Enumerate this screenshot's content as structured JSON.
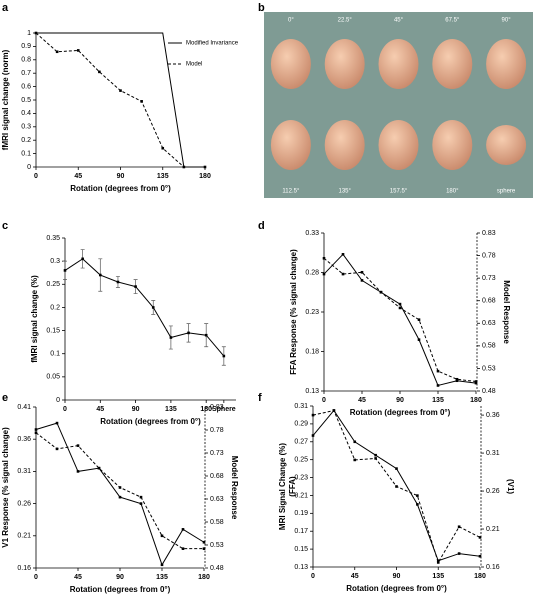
{
  "chart_data": [
    {
      "type": "line",
      "panel": "a",
      "xlabel": "Rotation (degrees  from 0°)",
      "ylabel": "fMRI signal change (norm)",
      "x": [
        0,
        22.5,
        45,
        67.5,
        90,
        112.5,
        135,
        157.5,
        180
      ],
      "xlim": [
        0,
        180
      ],
      "xticks": [
        0,
        45,
        90,
        135,
        180
      ],
      "ylim": [
        0,
        1
      ],
      "yticks": [
        0,
        0.1,
        0.2,
        0.3,
        0.4,
        0.5,
        0.6,
        0.7,
        0.8,
        0.9,
        1
      ],
      "legend": "upper right",
      "series": [
        {
          "name": "Modified Invariance",
          "color": "#000",
          "line_style": "solid",
          "marker": false,
          "values": [
            1,
            1,
            1,
            1,
            1,
            1,
            1,
            0,
            0
          ]
        },
        {
          "name": "Model",
          "color": "#000",
          "line_style": "dashed",
          "marker": true,
          "values": [
            1,
            0.86,
            0.87,
            0.71,
            0.57,
            0.49,
            0.14,
            0,
            0
          ]
        }
      ]
    },
    {
      "type": "image",
      "panel": "b",
      "labels": [
        "0°",
        "22.5°",
        "45°",
        "67.5°",
        "90°",
        "112.5°",
        "135°",
        "157.5°",
        "180°",
        "sphere"
      ]
    },
    {
      "type": "line",
      "panel": "c",
      "xlabel": "Rotation (degrees  from 0°)",
      "ylabel": "fMRI signal change (%)",
      "x": [
        0,
        22.5,
        45,
        67.5,
        90,
        112.5,
        135,
        157.5,
        180,
        202.5
      ],
      "xlim": [
        0,
        218
      ],
      "xticks": [
        0,
        45,
        90,
        135,
        180,
        {
          "value": 202.5,
          "label": "Sphere"
        }
      ],
      "ylim": [
        0,
        0.35
      ],
      "yticks": [
        0,
        0.05,
        0.1,
        0.15,
        0.2,
        0.25,
        0.3,
        0.35
      ],
      "series": [
        {
          "color": "#000",
          "line_style": "solid",
          "marker": true,
          "values": [
            0.28,
            0.305,
            0.27,
            0.255,
            0.245,
            0.2,
            0.135,
            0.145,
            0.14,
            0.095
          ],
          "errors": [
            0.02,
            0.02,
            0.035,
            0.012,
            0.015,
            0.015,
            0.025,
            0.02,
            0.025,
            0.02
          ]
        }
      ]
    },
    {
      "type": "line",
      "panel": "d",
      "xlabel": "Rotation (degrees  from 0°)",
      "ylabel": "FFA Response (% signal change)",
      "y2label": "Model Response",
      "x": [
        0,
        22.5,
        45,
        67.5,
        90,
        112.5,
        135,
        157.5,
        180
      ],
      "xlim": [
        0,
        180
      ],
      "xticks": [
        0,
        45,
        90,
        135,
        180
      ],
      "ylim": [
        0.13,
        0.33
      ],
      "yticks": [
        0.13,
        0.18,
        0.23,
        0.28,
        0.33
      ],
      "y2lim": [
        0.48,
        0.83
      ],
      "y2ticks": [
        0.48,
        0.53,
        0.58,
        0.63,
        0.68,
        0.73,
        0.78,
        0.83
      ],
      "series": [
        {
          "color": "#000",
          "line_style": "solid",
          "marker": true,
          "values": [
            0.278,
            0.303,
            0.27,
            0.255,
            0.24,
            0.195,
            0.137,
            0.143,
            0.14
          ]
        },
        {
          "color": "#000",
          "line_style": "dashed",
          "marker": true,
          "axis": "y2",
          "values": [
            0.774,
            0.739,
            0.743,
            0.699,
            0.664,
            0.638,
            0.524,
            0.506,
            0.501
          ]
        }
      ]
    },
    {
      "type": "line",
      "panel": "e",
      "xlabel": "Rotation (degrees  from 0°)",
      "ylabel": "V1 Response (% signal change)",
      "y2label": "Model Response",
      "x": [
        0,
        22.5,
        45,
        67.5,
        90,
        112.5,
        135,
        157.5,
        180
      ],
      "xlim": [
        0,
        180
      ],
      "xticks": [
        0,
        45,
        90,
        135,
        180
      ],
      "ylim": [
        0.16,
        0.41
      ],
      "yticks": [
        0.16,
        0.21,
        0.26,
        0.31,
        0.36,
        0.41
      ],
      "y2lim": [
        0.48,
        0.83
      ],
      "y2ticks": [
        0.48,
        0.53,
        0.58,
        0.63,
        0.68,
        0.73,
        0.78,
        0.83
      ],
      "series": [
        {
          "color": "#000",
          "line_style": "solid",
          "marker": true,
          "values": [
            0.375,
            0.385,
            0.31,
            0.315,
            0.27,
            0.26,
            0.165,
            0.22,
            0.2
          ]
        },
        {
          "color": "#000",
          "line_style": "dashed",
          "marker": true,
          "axis": "y2",
          "values": [
            0.774,
            0.739,
            0.746,
            0.697,
            0.655,
            0.634,
            0.55,
            0.522,
            0.522
          ]
        }
      ]
    },
    {
      "type": "line",
      "panel": "f",
      "xlabel": "Rotation (degrees  from 0°)",
      "ylabel": "MRI Signal Change (%)",
      "ylabel2": "(FFA)",
      "y2label": "(V1)",
      "x": [
        0,
        22.5,
        45,
        67.5,
        90,
        112.5,
        135,
        157.5,
        180
      ],
      "xlim": [
        0,
        180
      ],
      "xticks": [
        0,
        45,
        90,
        135,
        180
      ],
      "ylim": [
        0.13,
        0.31
      ],
      "yticks": [
        0.13,
        0.15,
        0.17,
        0.19,
        0.21,
        0.23,
        0.25,
        0.27,
        0.29,
        0.31
      ],
      "y2lim": [
        0.16,
        0.372
      ],
      "y2ticks": [
        0.16,
        0.21,
        0.26,
        0.31,
        0.36
      ],
      "series": [
        {
          "color": "#000",
          "line_style": "solid",
          "marker": true,
          "values": [
            0.277,
            0.305,
            0.27,
            0.255,
            0.24,
            0.2,
            0.137,
            0.145,
            0.142
          ]
        },
        {
          "color": "#000",
          "line_style": "dashed",
          "marker": true,
          "axis": "y2",
          "values": [
            0.36,
            0.366,
            0.301,
            0.303,
            0.266,
            0.254,
            0.166,
            0.213,
            0.199
          ]
        }
      ]
    }
  ]
}
